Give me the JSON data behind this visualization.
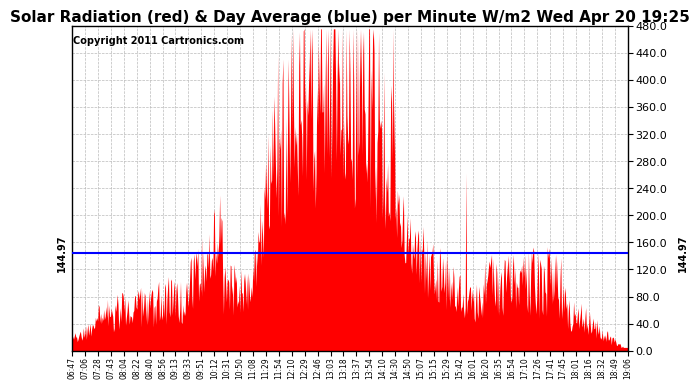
{
  "title": "Solar Radiation (red) & Day Average (blue) per Minute W/m2 Wed Apr 20 19:25",
  "copyright": "Copyright 2011 Cartronics.com",
  "ylabel_right_ticks": [
    0.0,
    40.0,
    80.0,
    120.0,
    160.0,
    200.0,
    240.0,
    280.0,
    320.0,
    360.0,
    400.0,
    440.0,
    480.0
  ],
  "ymin": 0.0,
  "ymax": 480.0,
  "day_average": 144.97,
  "avg_label": "144.97",
  "bar_color": "#FF0000",
  "avg_line_color": "#0000FF",
  "background_color": "#FFFFFF",
  "grid_color": "#BBBBBB",
  "title_fontsize": 11,
  "copyright_fontsize": 7,
  "x_tick_labels": [
    "06:47",
    "07:06",
    "07:28",
    "07:43",
    "08:04",
    "08:22",
    "08:40",
    "08:56",
    "09:13",
    "09:33",
    "09:51",
    "10:12",
    "10:31",
    "10:50",
    "11:08",
    "11:29",
    "11:54",
    "12:10",
    "12:29",
    "12:46",
    "13:03",
    "13:18",
    "13:37",
    "13:54",
    "14:10",
    "14:30",
    "14:50",
    "15:07",
    "15:15",
    "15:29",
    "15:42",
    "16:01",
    "16:20",
    "16:35",
    "16:54",
    "17:10",
    "17:26",
    "17:41",
    "17:45",
    "18:01",
    "18:16",
    "18:32",
    "18:49",
    "19:06"
  ]
}
